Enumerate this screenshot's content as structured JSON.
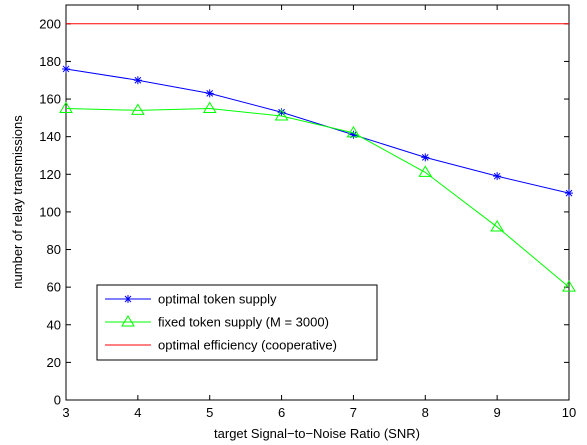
{
  "chart_data": {
    "type": "line",
    "title": "",
    "xlabel": "target Signal−to−Noise Ratio (SNR)",
    "ylabel": "number of relay transmissions",
    "xlim": [
      3,
      10
    ],
    "ylim": [
      0,
      210
    ],
    "xticks": [
      3,
      4,
      5,
      6,
      7,
      8,
      9,
      10
    ],
    "yticks": [
      0,
      20,
      40,
      60,
      80,
      100,
      120,
      140,
      160,
      180,
      200
    ],
    "grid": false,
    "legend_position": "bottom-left",
    "x": [
      3,
      4,
      5,
      6,
      7,
      8,
      9,
      10
    ],
    "series": [
      {
        "name": "optimal token supply",
        "color": "#0000ff",
        "marker": "asterisk",
        "values": [
          176,
          170,
          163,
          153,
          141,
          129,
          119,
          110
        ]
      },
      {
        "name": "fixed token supply (M = 3000)",
        "color": "#00ff00",
        "marker": "triangle",
        "values": [
          155,
          154,
          155,
          151,
          142,
          121,
          92,
          60
        ]
      },
      {
        "name": "optimal efficiency (cooperative)",
        "color": "#ff0000",
        "marker": "none",
        "values": [
          200,
          200,
          200,
          200,
          200,
          200,
          200,
          200
        ]
      }
    ]
  }
}
